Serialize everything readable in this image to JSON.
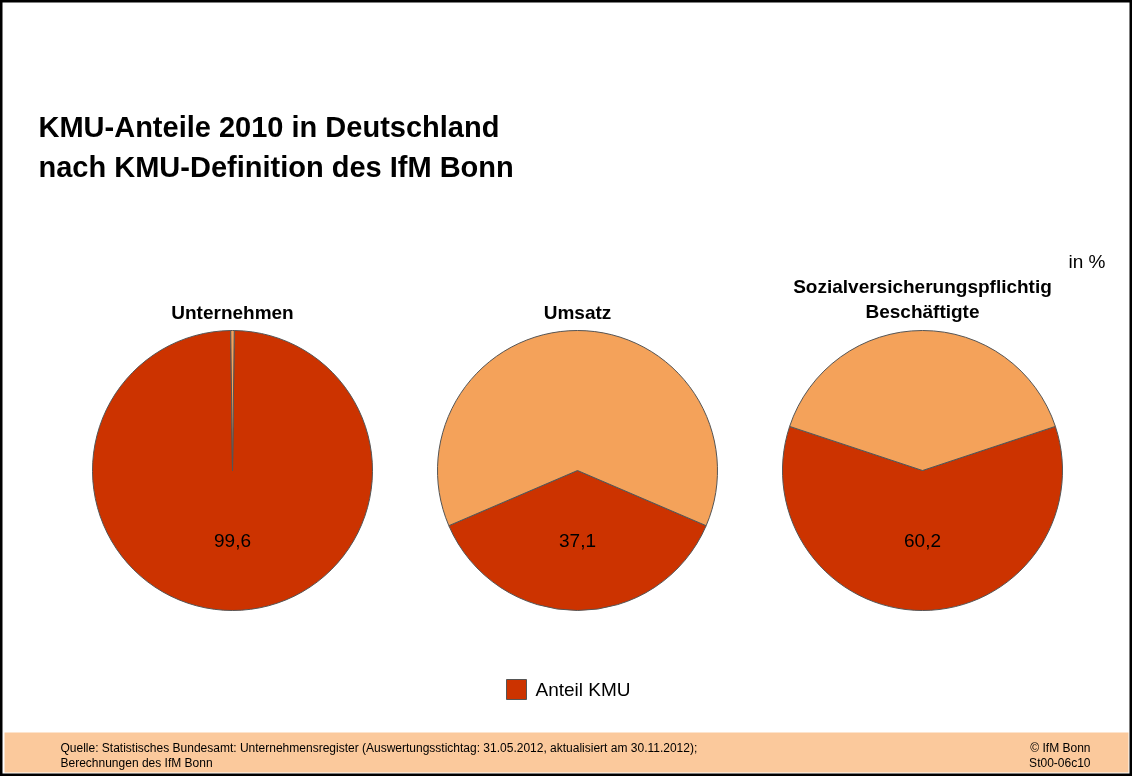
{
  "chart_data": [
    {
      "type": "other",
      "title": "KMU-Anteile 2010 in Deutschland\nnach KMU-Definition des IfM Bonn",
      "annotations": [
        "in %",
        "Quelle: Statistisches Bundesamt: Unternehmensregister (Auswertungsstichtag: 31.05.2012, aktualisiert am 30.11.2012);\n        Berechnungen des IfM Bonn",
        "© IfM Bonn\nSt00-06c10"
      ]
    },
    {
      "type": "pie",
      "title": "Unternehmen",
      "categories": [
        "Anteil KMU",
        null
      ],
      "values": [
        99.6,
        0.4
      ],
      "colors": [
        "#cc3300",
        "#f4a25a"
      ],
      "value_labels": [
        "99,6",
        null
      ],
      "legend": "bottom"
    },
    {
      "type": "pie",
      "title": "Umsatz",
      "categories": [
        null,
        null
      ],
      "values": [
        37.1,
        62.9
      ],
      "colors": [
        "#cc3300",
        "#f4a25a"
      ],
      "value_labels": [
        "37,1",
        null
      ]
    },
    {
      "type": "pie",
      "title": "Sozialversicherungspflichtig\nBeschäftigte",
      "categories": [
        null,
        null
      ],
      "values": [
        60.2,
        39.8
      ],
      "colors": [
        "#cc3300",
        "#f4a25a"
      ],
      "value_labels": [
        "60,2",
        null
      ]
    }
  ]
}
